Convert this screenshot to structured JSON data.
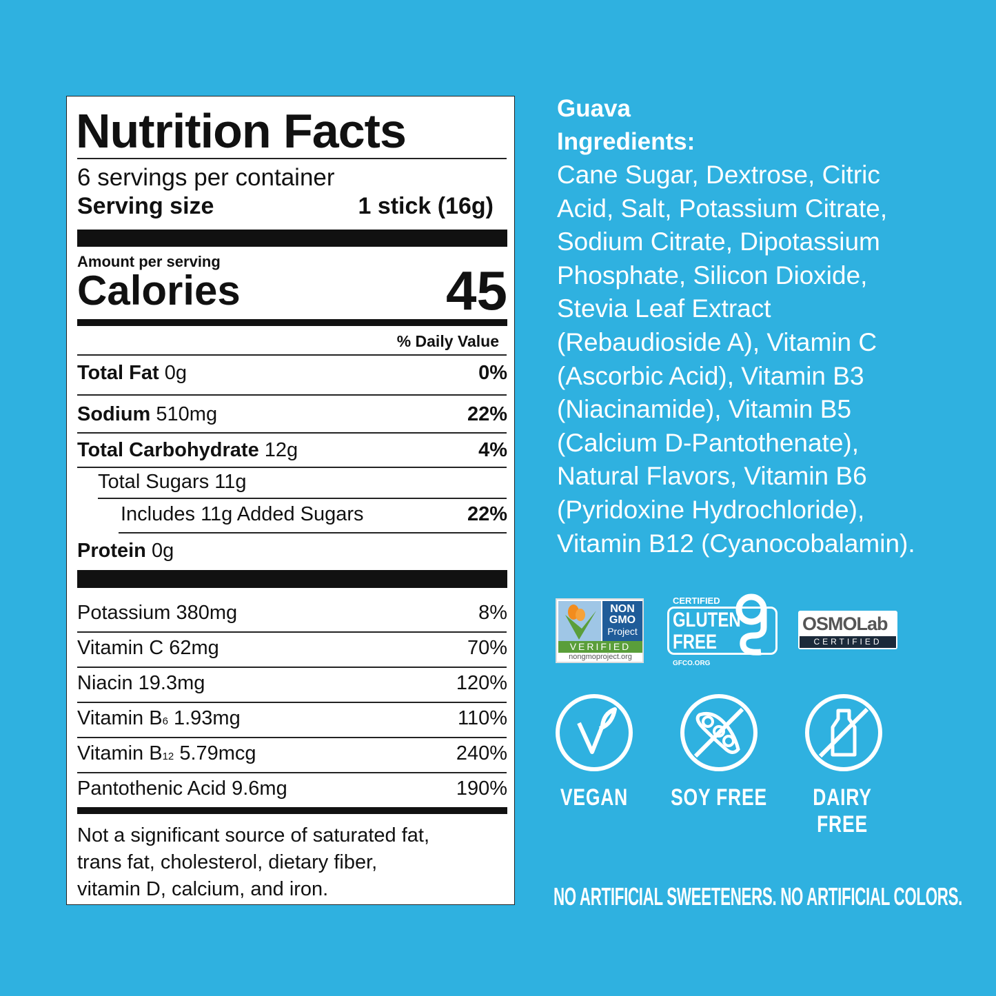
{
  "label": {
    "title": "Nutrition Facts",
    "servings": "6 servings per container",
    "serving_size_label": "Serving size",
    "serving_size_value": "1 stick (16g)",
    "amount_per_serving": "Amount per serving",
    "calories_label": "Calories",
    "calories_value": "45",
    "daily_value_header": "% Daily Value",
    "nutrients": [
      {
        "name": "Total Fat",
        "amount": "0g",
        "dv": "0%"
      },
      {
        "name": "Sodium",
        "amount": "510mg",
        "dv": "22%"
      },
      {
        "name": "Total Carbohydrate",
        "amount": "12g",
        "dv": "4%"
      },
      {
        "name": "Total Sugars",
        "amount": "11g",
        "dv": ""
      },
      {
        "name": "Includes 11g Added Sugars",
        "amount": "",
        "dv": "22%"
      },
      {
        "name": "Protein",
        "amount": "0g",
        "dv": ""
      }
    ],
    "vitamins": [
      {
        "name": "Potassium",
        "sub": "",
        "amount": "380mg",
        "dv": "8%"
      },
      {
        "name": "Vitamin C",
        "sub": "",
        "amount": "62mg",
        "dv": "70%"
      },
      {
        "name": "Niacin",
        "sub": "",
        "amount": "19.3mg",
        "dv": "120%"
      },
      {
        "name": "Vitamin B",
        "sub": "6",
        "amount": "1.93mg",
        "dv": "110%"
      },
      {
        "name": "Vitamin B",
        "sub": "12",
        "amount": "5.79mcg",
        "dv": "240%"
      },
      {
        "name": "Pantothenic Acid",
        "sub": "",
        "amount": "9.6mg",
        "dv": "190%"
      }
    ],
    "footnote": [
      "Not a significant source of saturated fat,",
      "trans fat, cholesterol, dietary fiber,",
      "vitamin D, calcium, and iron."
    ]
  },
  "ingredients": {
    "flavor": "Guava",
    "heading": "Ingredients:",
    "lines": [
      "Cane Sugar, Dextrose, Citric",
      "Acid, Salt, Potassium Citrate,",
      "Sodium Citrate, Dipotassium",
      "Phosphate, Silicon Dioxide,",
      "Stevia Leaf Extract",
      "(Rebaudioside A), Vitamin C",
      "(Ascorbic Acid), Vitamin B3",
      "(Niacinamide), Vitamin B5",
      "(Calcium D-Pantothenate),",
      "Natural Flavors, Vitamin B6",
      "(Pyridoxine Hydrochloride),",
      "Vitamin B12 (Cyanocobalamin)."
    ]
  },
  "badges": {
    "nongmo": {
      "line1": "NON",
      "line2": "GMO",
      "line3": "Project",
      "verified": "VERIFIED",
      "url": "nongmoproject.org"
    },
    "gluten": {
      "certified": "CERTIFIED",
      "line1": "GLUTEN",
      "line2": "FREE",
      "url": "GFCO.ORG"
    },
    "osmo": {
      "name": "OSMOLab",
      "certified": "CERTIFIED"
    }
  },
  "icons": [
    {
      "icon": "vegan-leaf-icon",
      "label": "VEGAN"
    },
    {
      "icon": "soy-free-icon",
      "label": "SOY FREE"
    },
    {
      "icon": "dairy-free-icon",
      "label": "DAIRY FREE"
    }
  ],
  "tagline": "NO ARTIFICIAL SWEETENERS. NO ARTIFICIAL COLORS.",
  "colors": {
    "background": "#2fb1e0",
    "nongmo_blue": "#1f5c99",
    "nongmo_green": "#5a9e3a",
    "osmo_navy": "#1b2a3a"
  }
}
